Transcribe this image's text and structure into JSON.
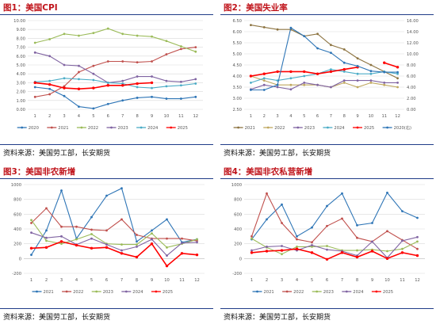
{
  "panels": [
    {
      "title": "图1：美国CPI",
      "source": "资料来源：美国劳工部，长安期货",
      "chart_data": {
        "type": "line",
        "x": [
          1,
          2,
          3,
          4,
          5,
          6,
          7,
          8,
          9,
          10,
          11,
          12
        ],
        "ylim": [
          0,
          10
        ],
        "yticks": [
          "0.00",
          "1.00",
          "2.00",
          "3.00",
          "4.00",
          "5.00",
          "6.00",
          "7.00",
          "8.00",
          "9.00",
          "10.00"
        ],
        "series": [
          {
            "name": "2020",
            "color": "#2e75b6",
            "values": [
              2.5,
              2.3,
              1.5,
              0.3,
              0.1,
              0.6,
              1.0,
              1.3,
              1.4,
              1.2,
              1.2,
              1.4
            ]
          },
          {
            "name": "2021",
            "color": "#c0504d",
            "values": [
              1.4,
              1.7,
              2.6,
              4.2,
              4.9,
              5.4,
              5.4,
              5.3,
              5.4,
              6.2,
              6.8,
              7.0
            ]
          },
          {
            "name": "2022",
            "color": "#9bbb59",
            "values": [
              7.5,
              7.9,
              8.5,
              8.3,
              8.6,
              9.1,
              8.5,
              8.3,
              8.2,
              7.7,
              7.1,
              6.5
            ]
          },
          {
            "name": "2023",
            "color": "#8064a2",
            "values": [
              6.4,
              6.0,
              5.0,
              4.9,
              4.0,
              3.0,
              3.2,
              3.7,
              3.7,
              3.2,
              3.1,
              3.4
            ]
          },
          {
            "name": "2024",
            "color": "#4bacc6",
            "values": [
              3.1,
              3.2,
              3.5,
              3.4,
              3.3,
              3.0,
              2.9,
              2.5,
              2.4,
              2.6,
              2.7,
              2.9
            ]
          },
          {
            "name": "2025",
            "color": "#ff0000",
            "values": [
              3.0,
              2.8,
              2.4,
              2.3,
              2.4,
              2.7,
              2.7,
              2.9,
              3.0,
              null,
              null,
              null
            ]
          }
        ]
      }
    },
    {
      "title": "图2：美国失业率",
      "source": "资料来源：美国劳工部，长安期货",
      "chart_data": {
        "type": "line",
        "x": [
          1,
          2,
          3,
          4,
          5,
          6,
          7,
          8,
          9,
          10,
          11,
          12
        ],
        "ylim": [
          2.5,
          6.5
        ],
        "yticks": [
          "2.50",
          "3.00",
          "3.50",
          "4.00",
          "4.50",
          "5.00",
          "5.50",
          "6.00",
          "6.50"
        ],
        "y2lim": [
          0,
          16
        ],
        "y2ticks": [
          "0.00",
          "2.00",
          "4.00",
          "6.00",
          "8.00",
          "10.00",
          "12.00",
          "14.00",
          "16.00"
        ],
        "series": [
          {
            "name": "2021",
            "color": "#8c7340",
            "values": [
              6.3,
              6.2,
              6.1,
              6.1,
              5.8,
              5.9,
              5.4,
              5.2,
              4.8,
              4.5,
              4.2,
              3.9
            ]
          },
          {
            "name": "2022",
            "color": "#bfa85f",
            "values": [
              4.0,
              3.8,
              3.6,
              3.6,
              3.6,
              3.6,
              3.5,
              3.7,
              3.5,
              3.7,
              3.6,
              3.5
            ]
          },
          {
            "name": "2023",
            "color": "#8064a2",
            "values": [
              3.4,
              3.6,
              3.5,
              3.4,
              3.7,
              3.6,
              3.5,
              3.8,
              3.8,
              3.8,
              3.7,
              3.7
            ]
          },
          {
            "name": "2024",
            "color": "#4bacc6",
            "values": [
              3.7,
              3.9,
              3.8,
              3.9,
              4.0,
              4.1,
              4.3,
              4.2,
              4.1,
              4.1,
              4.2,
              4.1
            ]
          },
          {
            "name": "2025",
            "color": "#ff0000",
            "values": [
              4.0,
              4.1,
              4.2,
              4.2,
              4.2,
              4.1,
              4.2,
              4.3,
              4.4,
              null,
              4.6,
              4.4
            ]
          },
          {
            "name": "2020(右)",
            "color": "#2e75b6",
            "axis": "right",
            "values": [
              3.5,
              3.5,
              4.4,
              14.7,
              13.2,
              11.0,
              10.2,
              8.4,
              7.8,
              6.9,
              6.7,
              6.7
            ]
          }
        ]
      }
    },
    {
      "title": "图3：美国非农新增",
      "source": "资料来源：美国劳工部，长安期货",
      "chart_data": {
        "type": "line",
        "x": [
          1,
          2,
          3,
          4,
          5,
          6,
          7,
          8,
          9,
          10,
          11,
          12
        ],
        "ylim": [
          -200,
          1000
        ],
        "yticks": [
          "-200",
          "0",
          "200",
          "400",
          "600",
          "800",
          "1000"
        ],
        "series": [
          {
            "name": "2021",
            "color": "#2e75b6",
            "values": [
              50,
              380,
              920,
              270,
              560,
              850,
              950,
              230,
              380,
              530,
              220,
              260
            ]
          },
          {
            "name": "2022",
            "color": "#c0504d",
            "values": [
              480,
              680,
              430,
              430,
              390,
              380,
              530,
              320,
              270,
              270,
              270,
              240
            ]
          },
          {
            "name": "2023",
            "color": "#9bbb59",
            "values": [
              520,
              240,
              200,
              260,
              330,
              200,
              190,
              190,
              340,
              150,
              200,
              260
            ]
          },
          {
            "name": "2024",
            "color": "#8064a2",
            "values": [
              350,
              280,
              300,
              190,
              270,
              190,
              110,
              160,
              260,
              40,
              210,
              220
            ]
          },
          {
            "name": "2025",
            "color": "#ff0000",
            "values": [
              140,
              150,
              230,
              180,
              140,
              150,
              70,
              20,
              200,
              -100,
              70,
              50
            ]
          }
        ]
      }
    },
    {
      "title": "图4：美国非农私营新增",
      "source": "资料来源：美国劳工部，长安期货",
      "chart_data": {
        "type": "line",
        "x": [
          1,
          2,
          3,
          4,
          5,
          6,
          7,
          8,
          9,
          10,
          11,
          12
        ],
        "ylim": [
          -200,
          1000
        ],
        "yticks": [
          "-200",
          "0",
          "200",
          "400",
          "600",
          "800",
          "1000"
        ],
        "series": [
          {
            "name": "2021",
            "color": "#2e75b6",
            "values": [
              260,
              530,
              730,
              300,
              420,
              710,
              880,
              450,
              480,
              890,
              640,
              550
            ]
          },
          {
            "name": "2022",
            "color": "#c0504d",
            "values": [
              300,
              880,
              480,
              260,
              220,
              440,
              540,
              280,
              230,
              370,
              250,
              130
            ]
          },
          {
            "name": "2023",
            "color": "#9bbb59",
            "values": [
              270,
              150,
              60,
              160,
              160,
              170,
              110,
              110,
              120,
              100,
              130,
              230
            ]
          },
          {
            "name": "2024",
            "color": "#8064a2",
            "values": [
              110,
              160,
              170,
              110,
              180,
              120,
              100,
              40,
              230,
              10,
              240,
              290
            ]
          },
          {
            "name": "2025",
            "color": "#ff0000",
            "values": [
              80,
              100,
              110,
              130,
              80,
              -10,
              80,
              20,
              100,
              0,
              80,
              40
            ]
          }
        ]
      }
    }
  ]
}
